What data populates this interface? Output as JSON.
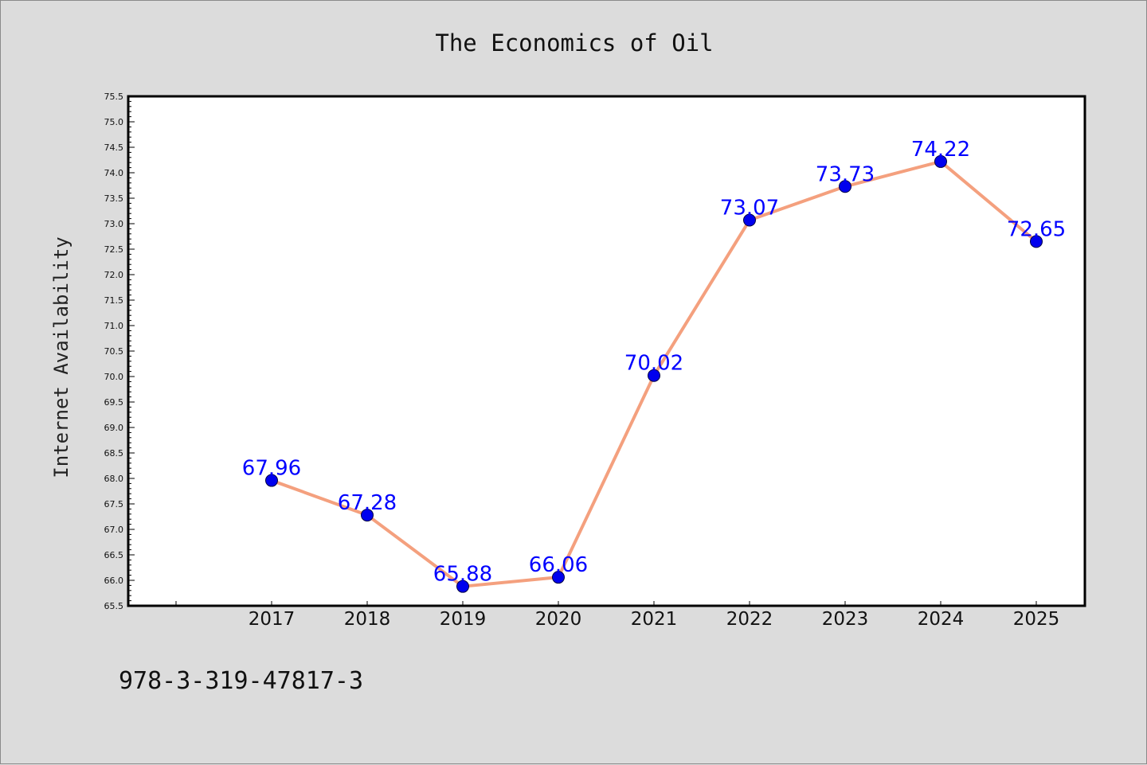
{
  "chart_data": {
    "type": "line",
    "title": "The Economics of Oil",
    "ylabel": "Internet Availability",
    "xlabel": "",
    "categories": [
      "2017",
      "2018",
      "2019",
      "2020",
      "2021",
      "2022",
      "2023",
      "2024",
      "2025"
    ],
    "values": [
      67.96,
      67.28,
      65.88,
      66.06,
      70.02,
      73.07,
      73.73,
      74.22,
      72.65
    ],
    "data_labels": [
      "67.96",
      "67.28",
      "65.88",
      "66.06",
      "70.02",
      "73.07",
      "73.73",
      "74.22",
      "72.65"
    ],
    "ylim": [
      65.5,
      75.5
    ],
    "yticks": [
      "65.5",
      "66.0",
      "66.5",
      "67.0",
      "67.5",
      "68.0",
      "68.5",
      "69.0",
      "69.5",
      "70.0",
      "70.5",
      "71.0",
      "71.5",
      "72.0",
      "72.5",
      "73.0",
      "73.5",
      "74.0",
      "74.5",
      "75.0",
      "75.5"
    ],
    "grid": false,
    "line_color": "#f4a07e",
    "marker_color": "#0000ee",
    "label_color": "#0000ff"
  },
  "footer": {
    "isbn": "978-3-319-47817-3"
  }
}
